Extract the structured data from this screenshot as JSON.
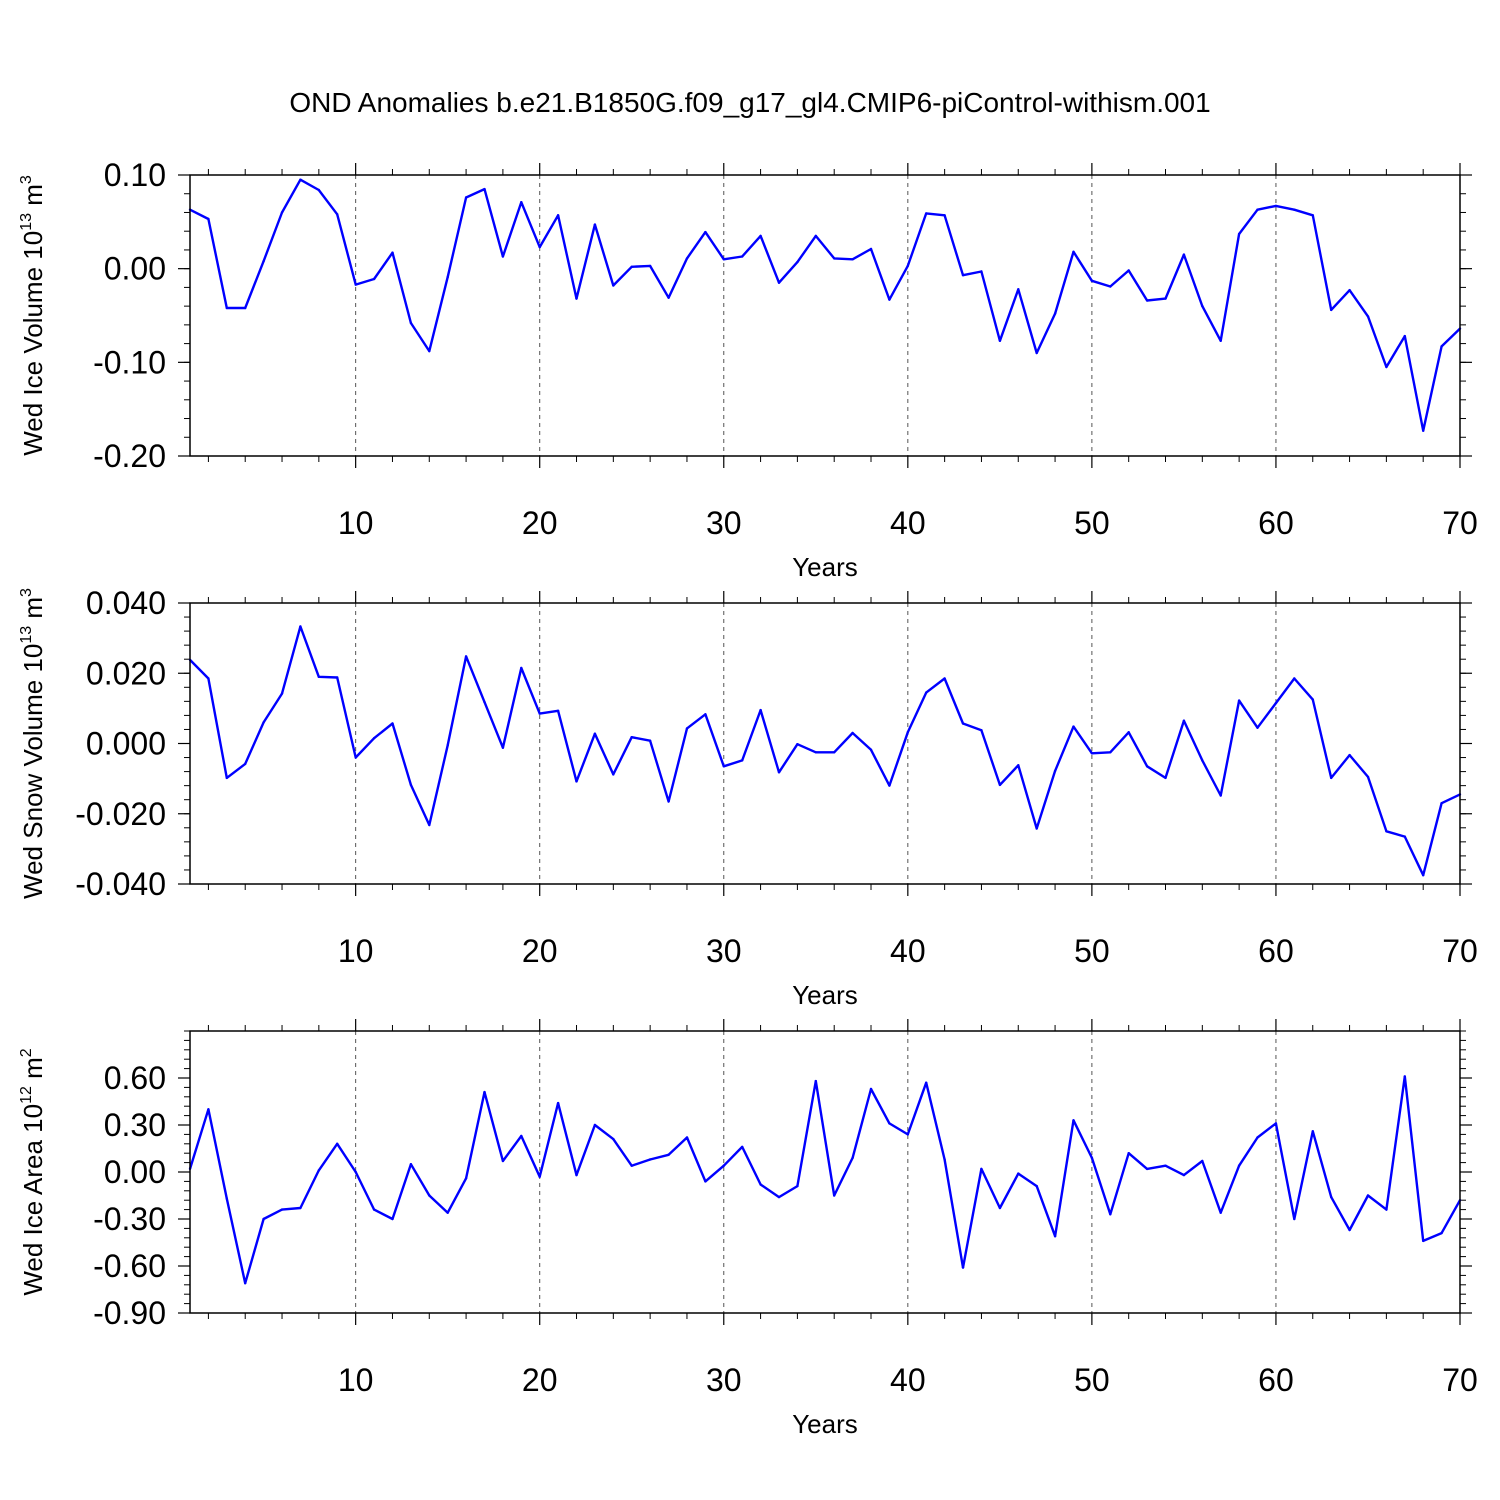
{
  "title": "OND Anomalies b.e21.B1850G.f09_g17_gl4.CMIP6-piControl-withism.001",
  "colors": {
    "line": "#0000ff",
    "axis": "#000000",
    "grid": "#555555"
  },
  "chart_data": [
    {
      "type": "line",
      "xlabel": "Years",
      "ylabel": {
        "main": "Wed Ice Volume 10",
        "exp": "13",
        "unit": " m",
        "unit_exp": "3"
      },
      "xlim": [
        1,
        70
      ],
      "ylim": [
        -0.2,
        0.1
      ],
      "x_ticks": [
        10,
        20,
        30,
        40,
        50,
        60,
        70
      ],
      "x_tick_labels": [
        "10",
        "20",
        "30",
        "40",
        "50",
        "60",
        "70"
      ],
      "y_ticks": [
        -0.2,
        -0.1,
        0.0,
        0.1
      ],
      "y_tick_labels": [
        "-0.20",
        "-0.10",
        "0.00",
        "0.10"
      ],
      "grid": "vertical dashed at major x ticks",
      "series": [
        {
          "x": [
            1,
            2,
            3,
            4,
            5,
            6,
            7,
            8,
            9,
            10,
            11,
            12,
            13,
            14,
            15,
            16,
            17,
            18,
            19,
            20,
            21,
            22,
            23,
            24,
            25,
            26,
            27,
            28,
            29,
            30,
            31,
            32,
            33,
            34,
            35,
            36,
            37,
            38,
            39,
            40,
            41,
            42,
            43,
            44,
            45,
            46,
            47,
            48,
            49,
            50,
            51,
            52,
            53,
            54,
            55,
            56,
            57,
            58,
            59,
            60,
            61,
            62,
            63,
            64,
            65,
            66,
            67,
            68,
            69,
            70
          ],
          "values": [
            0.063,
            0.053,
            -0.042,
            -0.042,
            0.008,
            0.06,
            0.095,
            0.084,
            0.058,
            -0.017,
            -0.011,
            0.017,
            -0.058,
            -0.088,
            -0.009,
            0.076,
            0.085,
            0.013,
            0.071,
            0.023,
            0.057,
            -0.032,
            0.047,
            -0.018,
            0.002,
            0.003,
            -0.031,
            0.011,
            0.039,
            0.01,
            0.013,
            0.035,
            -0.015,
            0.007,
            0.035,
            0.011,
            0.01,
            0.021,
            -0.033,
            0.003,
            0.059,
            0.057,
            -0.007,
            -0.003,
            -0.077,
            -0.022,
            -0.09,
            -0.048,
            0.018,
            -0.013,
            -0.019,
            -0.002,
            -0.034,
            -0.032,
            0.015,
            -0.04,
            -0.077,
            0.037,
            0.063,
            0.067,
            0.063,
            0.057,
            -0.044,
            -0.023,
            -0.051,
            -0.105,
            -0.072,
            -0.173,
            -0.083,
            -0.064
          ]
        }
      ]
    },
    {
      "type": "line",
      "xlabel": "Years",
      "ylabel": {
        "main": "Wed Snow Volume 10",
        "exp": "13",
        "unit": " m",
        "unit_exp": "3"
      },
      "xlim": [
        1,
        70
      ],
      "ylim": [
        -0.04,
        0.04
      ],
      "x_ticks": [
        10,
        20,
        30,
        40,
        50,
        60,
        70
      ],
      "x_tick_labels": [
        "10",
        "20",
        "30",
        "40",
        "50",
        "60",
        "70"
      ],
      "y_ticks": [
        -0.04,
        -0.02,
        0.0,
        0.02,
        0.04
      ],
      "y_tick_labels": [
        "-0.040",
        "-0.020",
        "0.000",
        "0.020",
        "0.040"
      ],
      "grid": "vertical dashed at major x ticks",
      "series": [
        {
          "x": [
            1,
            2,
            3,
            4,
            5,
            6,
            7,
            8,
            9,
            10,
            11,
            12,
            13,
            14,
            15,
            16,
            17,
            18,
            19,
            20,
            21,
            22,
            23,
            24,
            25,
            26,
            27,
            28,
            29,
            30,
            31,
            32,
            33,
            34,
            35,
            36,
            37,
            38,
            39,
            40,
            41,
            42,
            43,
            44,
            45,
            46,
            47,
            48,
            49,
            50,
            51,
            52,
            53,
            54,
            55,
            56,
            57,
            58,
            59,
            60,
            61,
            62,
            63,
            64,
            65,
            66,
            67,
            68,
            69,
            70
          ],
          "values": [
            0.0238,
            0.0185,
            -0.0098,
            -0.0058,
            0.006,
            0.0142,
            0.0333,
            0.019,
            0.0188,
            -0.004,
            0.0015,
            0.0057,
            -0.0118,
            -0.0232,
            -0.0005,
            0.0248,
            0.0118,
            -0.0012,
            0.0215,
            0.0085,
            0.0093,
            -0.0108,
            0.0028,
            -0.0088,
            0.0018,
            0.0008,
            -0.0165,
            0.0043,
            0.0083,
            -0.0065,
            -0.0048,
            0.0095,
            -0.0082,
            -0.0002,
            -0.0025,
            -0.0025,
            0.003,
            -0.0018,
            -0.012,
            0.0032,
            0.0145,
            0.0185,
            0.0057,
            0.0038,
            -0.0118,
            -0.0062,
            -0.0242,
            -0.0078,
            0.0048,
            -0.0028,
            -0.0025,
            0.0032,
            -0.0065,
            -0.0098,
            0.0065,
            -0.0048,
            -0.0148,
            0.0122,
            0.0045,
            0.0115,
            0.0185,
            0.0125,
            -0.0098,
            -0.0033,
            -0.0095,
            -0.025,
            -0.0265,
            -0.0375,
            -0.017,
            -0.0145
          ]
        }
      ]
    },
    {
      "type": "line",
      "xlabel": "Years",
      "ylabel": {
        "main": "Wed Ice Area 10",
        "exp": "12",
        "unit": " m",
        "unit_exp": "2"
      },
      "xlim": [
        1,
        70
      ],
      "ylim": [
        -0.9,
        0.9
      ],
      "x_ticks": [
        10,
        20,
        30,
        40,
        50,
        60,
        70
      ],
      "x_tick_labels": [
        "10",
        "20",
        "30",
        "40",
        "50",
        "60",
        "70"
      ],
      "y_ticks": [
        -0.9,
        -0.6,
        -0.3,
        0.0,
        0.3,
        0.6
      ],
      "y_tick_labels": [
        "-0.90",
        "-0.60",
        "-0.30",
        "0.00",
        "0.30",
        "0.60"
      ],
      "grid": "vertical dashed at major x ticks",
      "series": [
        {
          "x": [
            1,
            2,
            3,
            4,
            5,
            6,
            7,
            8,
            9,
            10,
            11,
            12,
            13,
            14,
            15,
            16,
            17,
            18,
            19,
            20,
            21,
            22,
            23,
            24,
            25,
            26,
            27,
            28,
            29,
            30,
            31,
            32,
            33,
            34,
            35,
            36,
            37,
            38,
            39,
            40,
            41,
            42,
            43,
            44,
            45,
            46,
            47,
            48,
            49,
            50,
            51,
            52,
            53,
            54,
            55,
            56,
            57,
            58,
            59,
            60,
            61,
            62,
            63,
            64,
            65,
            66,
            67,
            68,
            69,
            70
          ],
          "values": [
            0.02,
            0.4,
            -0.17,
            -0.71,
            -0.3,
            -0.24,
            -0.23,
            0.01,
            0.18,
            0.0,
            -0.24,
            -0.3,
            0.05,
            -0.15,
            -0.26,
            -0.04,
            0.51,
            0.07,
            0.23,
            -0.03,
            0.44,
            -0.02,
            0.3,
            0.21,
            0.04,
            0.08,
            0.11,
            0.22,
            -0.06,
            0.04,
            0.16,
            -0.08,
            -0.16,
            -0.09,
            0.58,
            -0.15,
            0.09,
            0.53,
            0.31,
            0.24,
            0.57,
            0.08,
            -0.61,
            0.02,
            -0.23,
            -0.01,
            -0.09,
            -0.41,
            0.33,
            0.09,
            -0.27,
            0.12,
            0.02,
            0.04,
            -0.02,
            0.07,
            -0.26,
            0.04,
            0.22,
            0.31,
            -0.3,
            0.26,
            -0.16,
            -0.37,
            -0.15,
            -0.24,
            0.61,
            -0.44,
            -0.39,
            -0.18
          ]
        }
      ]
    }
  ]
}
